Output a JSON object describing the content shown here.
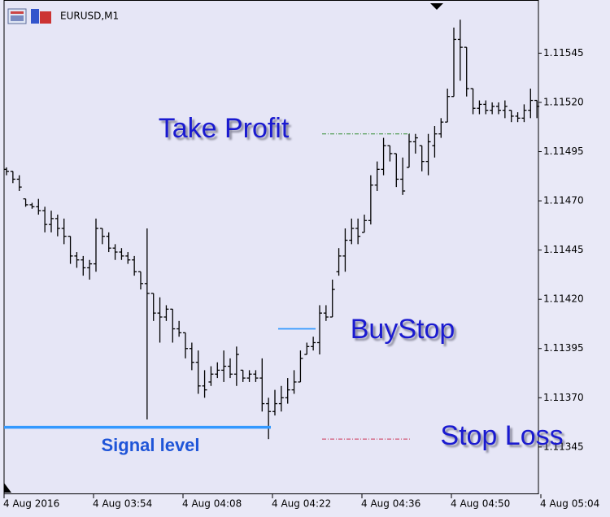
{
  "chart_data": {
    "type": "ohlc",
    "title": "EURUSD,M1",
    "color": "#000000",
    "open": [
      1.11486,
      1.11485,
      1.11481,
      1.11471,
      1.11468,
      1.11467,
      1.11465,
      1.11458,
      1.11461,
      1.11456,
      1.11452,
      1.11442,
      1.1144,
      1.11436,
      1.11438,
      1.11456,
      1.11452,
      1.11446,
      1.11444,
      1.11442,
      1.1144,
      1.11434,
      1.11428,
      1.11423,
      1.11413,
      1.11411,
      1.11415,
      1.11405,
      1.11403,
      1.11395,
      1.11388,
      1.11376,
      1.11378,
      1.11382,
      1.11384,
      1.11386,
      1.11382,
      1.11384,
      1.1138,
      1.11382,
      1.1138,
      1.11367,
      1.11363,
      1.11367,
      1.1137,
      1.11374,
      1.11378,
      1.11392,
      1.11396,
      1.11398,
      1.11413,
      1.11411,
      1.11434,
      1.11442,
      1.1145,
      1.11456,
      1.11454,
      1.1146,
      1.11478,
      1.11486,
      1.11498,
      1.11494,
      1.11481,
      1.11487,
      1.115,
      1.11498,
      1.1149,
      1.11498,
      1.11504,
      1.1151,
      1.11523,
      1.11552,
      1.11548,
      1.11527,
      1.11517,
      1.11519,
      1.11516,
      1.11518,
      1.11516,
      1.11516,
      1.11513,
      1.11512,
      1.11516,
      1.11521
    ],
    "high": [
      1.11487,
      1.11485,
      1.11483,
      1.11471,
      1.11469,
      1.11471,
      1.11467,
      1.11465,
      1.11463,
      1.11461,
      1.11452,
      1.11444,
      1.11442,
      1.1144,
      1.11461,
      1.11456,
      1.11454,
      1.11448,
      1.11446,
      1.11444,
      1.11442,
      1.11434,
      1.11456,
      1.11423,
      1.11421,
      1.11417,
      1.11415,
      1.11409,
      1.11403,
      1.11398,
      1.11394,
      1.11384,
      1.11386,
      1.11388,
      1.11394,
      1.1139,
      1.11396,
      1.11384,
      1.11384,
      1.11384,
      1.1139,
      1.1137,
      1.11374,
      1.11376,
      1.1138,
      1.11384,
      1.11394,
      1.11398,
      1.11401,
      1.11417,
      1.11417,
      1.1143,
      1.11446,
      1.11456,
      1.11461,
      1.11461,
      1.11463,
      1.11483,
      1.1149,
      1.11502,
      1.11498,
      1.11494,
      1.11492,
      1.11504,
      1.11504,
      1.11498,
      1.11504,
      1.11508,
      1.11512,
      1.11527,
      1.11558,
      1.11562,
      1.11548,
      1.11527,
      1.11521,
      1.11521,
      1.1152,
      1.1152,
      1.11521,
      1.11516,
      1.11515,
      1.11519,
      1.11527,
      1.11521
    ],
    "low": [
      1.11483,
      1.11479,
      1.11475,
      1.11467,
      1.11466,
      1.11463,
      1.11454,
      1.11454,
      1.11452,
      1.11448,
      1.11438,
      1.11436,
      1.11432,
      1.1143,
      1.11434,
      1.11448,
      1.11444,
      1.1144,
      1.1144,
      1.11438,
      1.11432,
      1.11425,
      1.11359,
      1.11409,
      1.11398,
      1.11409,
      1.11398,
      1.11401,
      1.1139,
      1.11384,
      1.11372,
      1.1137,
      1.11376,
      1.1138,
      1.11378,
      1.1138,
      1.11376,
      1.11378,
      1.11378,
      1.11378,
      1.11363,
      1.11349,
      1.11361,
      1.11363,
      1.11367,
      1.11372,
      1.11378,
      1.11392,
      1.11394,
      1.11392,
      1.11409,
      1.11411,
      1.11432,
      1.11434,
      1.11448,
      1.11448,
      1.11454,
      1.11458,
      1.11475,
      1.11483,
      1.1149,
      1.11477,
      1.11473,
      1.11487,
      1.11494,
      1.11485,
      1.11483,
      1.11492,
      1.11502,
      1.1151,
      1.11523,
      1.11531,
      1.11523,
      1.11514,
      1.11514,
      1.11514,
      1.11514,
      1.11514,
      1.11512,
      1.1151,
      1.1151,
      1.1151,
      1.11512,
      1.11512
    ],
    "close": [
      1.11485,
      1.11481,
      1.11477,
      1.11468,
      1.11467,
      1.11465,
      1.11458,
      1.11461,
      1.11456,
      1.11452,
      1.11442,
      1.1144,
      1.11436,
      1.11438,
      1.11456,
      1.11452,
      1.11446,
      1.11444,
      1.11442,
      1.1144,
      1.11434,
      1.11428,
      1.11423,
      1.11413,
      1.11411,
      1.11415,
      1.11405,
      1.11403,
      1.11395,
      1.11388,
      1.11376,
      1.11374,
      1.11382,
      1.11384,
      1.11386,
      1.11382,
      1.11392,
      1.1138,
      1.11382,
      1.1138,
      1.11367,
      1.11363,
      1.11367,
      1.1137,
      1.11374,
      1.11378,
      1.1139,
      1.11396,
      1.11398,
      1.11413,
      1.11411,
      1.11425,
      1.11442,
      1.1145,
      1.11456,
      1.11452,
      1.1146,
      1.11478,
      1.11486,
      1.11498,
      1.11494,
      1.11481,
      1.11475,
      1.115,
      1.11502,
      1.1149,
      1.115,
      1.11504,
      1.1151,
      1.11523,
      1.11552,
      1.11548,
      1.11527,
      1.11517,
      1.11519,
      1.11516,
      1.11518,
      1.11516,
      1.11518,
      1.11513,
      1.11512,
      1.11516,
      1.11521,
      1.11518
    ],
    "xlim": [
      0,
      84
    ],
    "xticks": [
      {
        "value": 0,
        "label": "4 Aug 2016"
      },
      {
        "value": 14,
        "label": "4 Aug 03:54"
      },
      {
        "value": 28,
        "label": "4 Aug 04:08"
      },
      {
        "value": 42,
        "label": "4 Aug 04:22"
      },
      {
        "value": 56,
        "label": "4 Aug 04:36"
      },
      {
        "value": 70,
        "label": "4 Aug 04:50"
      },
      {
        "value": 84,
        "label": "4 Aug 05:04"
      }
    ],
    "ylim": [
      1.11321,
      1.11572
    ],
    "yticks": [
      1.11345,
      {
        "value": 1.1137,
        "label": "1.11370"
      },
      1.11395,
      {
        "value": 1.1142,
        "label": "1.11420"
      },
      1.11445,
      {
        "value": 1.1147,
        "label": "1.11470"
      },
      1.11495,
      {
        "value": 1.1152,
        "label": "1.11520"
      },
      1.11545
    ],
    "lines": [
      {
        "label": "Signal level",
        "value": 1.11355,
        "color": "#3399ff"
      },
      {
        "label": "BuyStop",
        "value": 1.11405,
        "color": "#3399ff"
      },
      {
        "label": "Take Profit",
        "value": 1.11504,
        "color": "#2e8b2e"
      },
      {
        "label": "Stop Loss",
        "value": 1.11349,
        "color": "#cc3355"
      }
    ]
  }
}
